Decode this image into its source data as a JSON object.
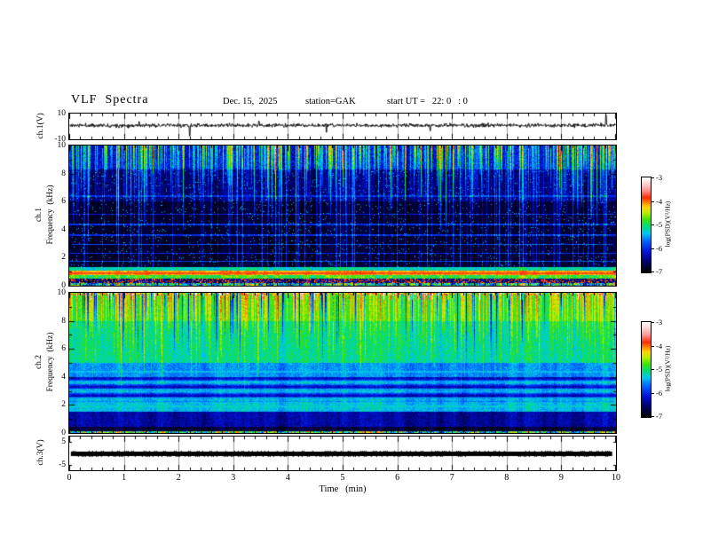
{
  "header": {
    "title": "VLF  Spectra",
    "date": "Dec. 15,  2025",
    "station": "station=GAK",
    "start_ut": "start UT =   22: 0   : 0"
  },
  "time_axis": {
    "label": "Time   (min)",
    "tick_labels": [
      "0",
      "1",
      "2",
      "3",
      "4",
      "5",
      "6",
      "7",
      "8",
      "9",
      "10"
    ],
    "range_min": [
      0,
      10
    ]
  },
  "colormap_stops": [
    {
      "v": -7.0,
      "c": "#000000"
    },
    {
      "v": -6.6,
      "c": "#000060"
    },
    {
      "v": -6.15,
      "c": "#0010d8"
    },
    {
      "v": -5.7,
      "c": "#0064ff"
    },
    {
      "v": -5.35,
      "c": "#00c8f0"
    },
    {
      "v": -5.05,
      "c": "#00dd77"
    },
    {
      "v": -4.75,
      "c": "#44e400"
    },
    {
      "v": -4.5,
      "c": "#b8ee00"
    },
    {
      "v": -4.25,
      "c": "#ffd500"
    },
    {
      "v": -4.05,
      "c": "#ff8800"
    },
    {
      "v": -3.85,
      "c": "#ff2a00"
    },
    {
      "v": -3.55,
      "c": "#ff8f8f"
    },
    {
      "v": -3.25,
      "c": "#ffd2d2"
    },
    {
      "v": -3.0,
      "c": "#ffffff"
    }
  ],
  "colorbars": [
    {
      "label": "log(PSD)(V²/Hz)",
      "tick_labels": [
        "-3",
        "-4",
        "-5",
        "-6",
        "-7"
      ],
      "value_range": [
        -3,
        -7
      ]
    },
    {
      "label": "log(PSD)(V²/Hz)",
      "tick_labels": [
        "-3",
        "-4",
        "-5",
        "-6",
        "-7"
      ],
      "value_range": [
        -3,
        -7
      ]
    }
  ],
  "chart_data": [
    {
      "type": "line",
      "name": "ch1_waveform",
      "ylabel": "ch.1(V)",
      "ylim": [
        -10,
        10
      ],
      "ytick_labels": [
        "10",
        "-10"
      ],
      "seed": 11,
      "baseline_v": 0.8,
      "noise_sd": 1.0,
      "spikes": [
        {
          "x_min": 1.28,
          "amp": 3.8
        },
        {
          "x_min": 2.2,
          "amp": -7.5
        },
        {
          "x_min": 3.47,
          "amp": 4.2
        },
        {
          "x_min": 4.7,
          "amp": -4.5
        },
        {
          "x_min": 6.6,
          "amp": -3.4
        },
        {
          "x_min": 9.82,
          "amp": 9.0
        }
      ]
    },
    {
      "type": "heatmap",
      "name": "ch1_spectrogram",
      "ylabel_lines": [
        "ch.1",
        "Frequency  (kHz)"
      ],
      "ylim_khz": [
        0,
        10
      ],
      "ytick_labels": [
        "10",
        "8",
        "6",
        "4",
        "2",
        "0"
      ],
      "value_range": [
        -7,
        -3
      ],
      "seed": 42,
      "bands": [
        {
          "f": [
            8.3,
            10.0
          ],
          "v": -6.1,
          "noise": 0.5
        },
        {
          "f": [
            6.0,
            8.3
          ],
          "v": -6.5,
          "noise": 0.35
        },
        {
          "f": [
            1.35,
            6.0
          ],
          "v": -6.8,
          "noise": 0.2
        },
        {
          "f": [
            1.05,
            1.35
          ],
          "v": -5.2,
          "noise": 0.35
        },
        {
          "f": [
            0.78,
            1.05
          ],
          "v": -4.1,
          "noise": 0.25
        },
        {
          "f": [
            0.5,
            0.78
          ],
          "v": -4.85,
          "noise": 0.45
        },
        {
          "f": [
            0.22,
            0.5
          ],
          "v": -6.5,
          "noise": 0.4,
          "fleck": {
            "prob": 0.3,
            "v": -3.9
          }
        },
        {
          "f": [
            0.0,
            0.22
          ],
          "v": -5.2,
          "noise": 1.3
        }
      ],
      "h_lines": [
        {
          "f": 0.9,
          "v": -3.9
        },
        {
          "f": 1.75,
          "v": -5.9
        },
        {
          "f": 2.3,
          "v": -6.0
        },
        {
          "f": 2.95,
          "v": -5.9
        },
        {
          "f": 3.6,
          "v": -6.0
        },
        {
          "f": 4.35,
          "v": -6.0
        },
        {
          "f": 5.1,
          "v": -6.1
        },
        {
          "f": 6.4,
          "v": -6.0
        }
      ],
      "streaks": {
        "density": 0.5,
        "strength": [
          0.5,
          2.0
        ],
        "depth_khz": [
          1.5,
          8.0
        ],
        "full_depth_frac": 0.15,
        "full_depth_strength": 0.6
      },
      "speckle": {
        "prob": 0.025,
        "v": -5.4
      }
    },
    {
      "type": "heatmap",
      "name": "ch2_spectrogram",
      "ylabel_lines": [
        "ch.2",
        "Frequency  (kHz)"
      ],
      "ylim_khz": [
        0,
        10
      ],
      "ytick_labels": [
        "10",
        "8",
        "6",
        "4",
        "2",
        "0"
      ],
      "value_range": [
        -7,
        -3
      ],
      "seed": 97,
      "bands": [
        {
          "f": [
            9.82,
            10.0
          ],
          "v": -4.75,
          "noise": 0.6,
          "fleck": {
            "prob": 0.25,
            "v": -3.85
          }
        },
        {
          "f": [
            8.0,
            9.82
          ],
          "v": -4.85,
          "noise": 0.3
        },
        {
          "f": [
            5.0,
            8.0
          ],
          "v": -5.1,
          "noise": 0.3
        },
        {
          "f": [
            4.0,
            5.0
          ],
          "v": -5.55,
          "noise": 0.3
        },
        {
          "f": [
            2.2,
            4.0
          ],
          "v": -5.8,
          "noise": 0.3,
          "banded": {
            "period_khz": 0.62,
            "amp": 0.45
          }
        },
        {
          "f": [
            1.5,
            2.2
          ],
          "v": -5.35,
          "noise": 0.3
        },
        {
          "f": [
            0.45,
            1.5
          ],
          "v": -6.35,
          "noise": 0.3
        },
        {
          "f": [
            0.12,
            0.45
          ],
          "v": -6.75,
          "noise": 0.25
        },
        {
          "f": [
            0.0,
            0.12
          ],
          "v": -5.0,
          "noise": 1.4
        }
      ],
      "h_lines": [
        {
          "f": 1.9,
          "v": -5.3
        },
        {
          "f": 2.5,
          "v": -5.35
        },
        {
          "f": 3.12,
          "v": -5.45
        },
        {
          "f": 3.7,
          "v": -5.5
        },
        {
          "f": 4.35,
          "v": -5.4
        }
      ],
      "streaks": {
        "density": 0.45,
        "strength": [
          0.3,
          0.95
        ],
        "depth_khz": [
          2.5,
          7.5
        ],
        "full_depth_frac": 0.0,
        "full_depth_strength": 0,
        "dark_density": 0.14,
        "dark_strength": -1.6,
        "dark_depth_khz": [
          2,
          5.5
        ],
        "red_top_density": 0.05,
        "red_top_strength": 1.2,
        "red_top_depth_khz": 0.5
      },
      "speckle": {
        "prob": 0.0,
        "v": -5.4
      }
    },
    {
      "type": "line",
      "name": "ch3_waveform",
      "ylabel": "ch.3(V)",
      "ylim": [
        -7,
        7
      ],
      "ytick_labels": [
        "5",
        "-5"
      ],
      "seed": 5,
      "flat_value": 0,
      "line_start_min": 0.03,
      "line_end_min": 9.93,
      "line_thickness_v": 0.9
    }
  ]
}
